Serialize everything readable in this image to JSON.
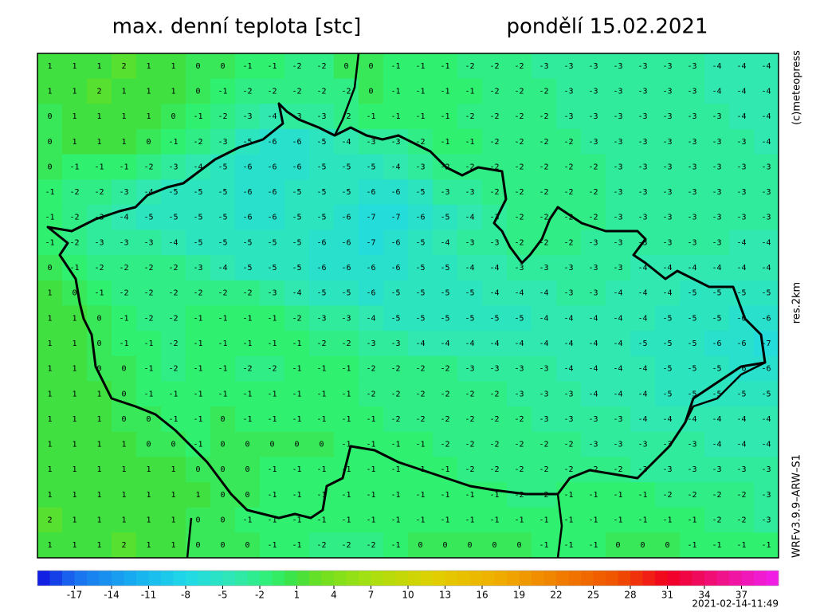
{
  "header": {
    "title": "max. denní teplota [stc]",
    "date": "pondělí 15.02.2021"
  },
  "side_labels": {
    "copyright": "(c)meteopress",
    "resolution": "res.2km",
    "model": "WRFv3.9.9–ARW–S1"
  },
  "footer": {
    "timestamp": "2021-02-14-11:49"
  },
  "map": {
    "grid": [
      [
        1,
        1,
        1,
        2,
        1,
        1,
        0,
        0,
        -1,
        -1,
        -2,
        -2,
        0,
        0,
        -1,
        -1,
        -1,
        -2,
        -2,
        -2,
        -3,
        -3,
        -3,
        -3,
        -3,
        -3,
        -3,
        -4,
        -4,
        -4
      ],
      [
        1,
        1,
        2,
        1,
        1,
        1,
        0,
        -1,
        -2,
        -2,
        -2,
        -2,
        -2,
        0,
        -1,
        -1,
        -1,
        -1,
        -2,
        -2,
        -2,
        -3,
        -3,
        -3,
        -3,
        -3,
        -3,
        -4,
        -4,
        -4
      ],
      [
        0,
        1,
        1,
        1,
        1,
        0,
        -1,
        -2,
        -3,
        -4,
        -3,
        -3,
        -2,
        -1,
        -1,
        -1,
        -1,
        -2,
        -2,
        -2,
        -2,
        -3,
        -3,
        -3,
        -3,
        -3,
        -3,
        -3,
        -4,
        -4
      ],
      [
        0,
        1,
        1,
        1,
        0,
        -1,
        -2,
        -3,
        -5,
        -6,
        -6,
        -5,
        -4,
        -3,
        -3,
        -2,
        -1,
        -1,
        -2,
        -2,
        -2,
        -2,
        -3,
        -3,
        -3,
        -3,
        -3,
        -3,
        -3,
        -4
      ],
      [
        0,
        -1,
        -1,
        -1,
        -2,
        -3,
        -4,
        -5,
        -6,
        -6,
        -6,
        -5,
        -5,
        -5,
        -4,
        -3,
        -2,
        -2,
        -2,
        -2,
        -2,
        -2,
        -2,
        -3,
        -3,
        -3,
        -3,
        -3,
        -3,
        -3
      ],
      [
        -1,
        -2,
        -2,
        -3,
        -4,
        -5,
        -5,
        -5,
        -6,
        -6,
        -5,
        -5,
        -5,
        -6,
        -6,
        -5,
        -3,
        -3,
        -2,
        -2,
        -2,
        -2,
        -2,
        -3,
        -3,
        -3,
        -3,
        -3,
        -3,
        -3
      ],
      [
        -1,
        -2,
        -3,
        -4,
        -5,
        -5,
        -5,
        -5,
        -6,
        -6,
        -5,
        -5,
        -6,
        -7,
        -7,
        -6,
        -5,
        -4,
        -3,
        -2,
        -2,
        -2,
        -2,
        -3,
        -3,
        -3,
        -3,
        -3,
        -3,
        -3
      ],
      [
        -1,
        -2,
        -3,
        -3,
        -3,
        -4,
        -5,
        -5,
        -5,
        -5,
        -5,
        -6,
        -6,
        -7,
        -6,
        -5,
        -4,
        -3,
        -3,
        -2,
        -2,
        -2,
        -3,
        -3,
        -3,
        -3,
        -3,
        -3,
        -4,
        -4
      ],
      [
        0,
        -1,
        -2,
        -2,
        -2,
        -2,
        -3,
        -4,
        -5,
        -5,
        -5,
        -6,
        -6,
        -6,
        -6,
        -5,
        -5,
        -4,
        -4,
        -3,
        -3,
        -3,
        -3,
        -3,
        -4,
        -4,
        -4,
        -4,
        -4,
        -4
      ],
      [
        1,
        0,
        -1,
        -2,
        -2,
        -2,
        -2,
        -2,
        -2,
        -3,
        -4,
        -5,
        -5,
        -6,
        -5,
        -5,
        -5,
        -5,
        -4,
        -4,
        -4,
        -3,
        -3,
        -4,
        -4,
        -4,
        -5,
        -5,
        -5,
        -5
      ],
      [
        1,
        1,
        0,
        -1,
        -2,
        -2,
        -1,
        -1,
        -1,
        -1,
        -2,
        -3,
        -3,
        -4,
        -5,
        -5,
        -5,
        -5,
        -5,
        -5,
        -4,
        -4,
        -4,
        -4,
        -4,
        -5,
        -5,
        -5,
        -6,
        -6
      ],
      [
        1,
        1,
        0,
        -1,
        -1,
        -2,
        -1,
        -1,
        -1,
        -1,
        -1,
        -2,
        -2,
        -3,
        -3,
        -4,
        -4,
        -4,
        -4,
        -4,
        -4,
        -4,
        -4,
        -4,
        -5,
        -5,
        -5,
        -6,
        -6,
        -7
      ],
      [
        1,
        1,
        0,
        0,
        -1,
        -2,
        -1,
        -1,
        -2,
        -2,
        -1,
        -1,
        -1,
        -2,
        -2,
        -2,
        -2,
        -3,
        -3,
        -3,
        -3,
        -4,
        -4,
        -4,
        -4,
        -5,
        -5,
        -5,
        -6,
        -6
      ],
      [
        1,
        1,
        1,
        0,
        -1,
        -1,
        -1,
        -1,
        -1,
        -1,
        -1,
        -1,
        -1,
        -2,
        -2,
        -2,
        -2,
        -2,
        -2,
        -3,
        -3,
        -3,
        -4,
        -4,
        -4,
        -5,
        -5,
        -5,
        -5,
        -5
      ],
      [
        1,
        1,
        1,
        0,
        0,
        -1,
        -1,
        0,
        -1,
        -1,
        -1,
        -1,
        -1,
        -1,
        -2,
        -2,
        -2,
        -2,
        -2,
        -2,
        -3,
        -3,
        -3,
        -3,
        -4,
        -4,
        -4,
        -4,
        -4,
        -4
      ],
      [
        1,
        1,
        1,
        1,
        0,
        0,
        -1,
        0,
        0,
        0,
        0,
        0,
        -1,
        -1,
        -1,
        -1,
        -2,
        -2,
        -2,
        -2,
        -2,
        -2,
        -3,
        -3,
        -3,
        -3,
        -3,
        -4,
        -4,
        -4
      ],
      [
        1,
        1,
        1,
        1,
        1,
        1,
        0,
        0,
        0,
        -1,
        -1,
        -1,
        -1,
        -1,
        -1,
        -1,
        -1,
        -2,
        -2,
        -2,
        -2,
        -2,
        -2,
        -2,
        -3,
        -3,
        -3,
        -3,
        -3,
        -3
      ],
      [
        1,
        1,
        1,
        1,
        1,
        1,
        1,
        0,
        0,
        -1,
        -1,
        -1,
        -1,
        -1,
        -1,
        -1,
        -1,
        -1,
        -1,
        -2,
        -2,
        -1,
        -1,
        -1,
        -1,
        -2,
        -2,
        -2,
        -2,
        -3
      ],
      [
        2,
        1,
        1,
        1,
        1,
        1,
        0,
        0,
        -1,
        -1,
        -1,
        -1,
        -1,
        -1,
        -1,
        -1,
        -1,
        -1,
        -1,
        -1,
        -1,
        -1,
        -1,
        -1,
        -1,
        -1,
        -1,
        -2,
        -2,
        -3
      ],
      [
        1,
        1,
        1,
        2,
        1,
        1,
        0,
        0,
        0,
        -1,
        -1,
        -2,
        -2,
        -2,
        -1,
        0,
        0,
        0,
        0,
        0,
        -1,
        -1,
        -1,
        0,
        0,
        0,
        -1,
        -1,
        -1,
        -1
      ]
    ]
  },
  "colorbar": {
    "lim": [
      -20,
      40
    ],
    "ticks": [
      -17,
      -14,
      -11,
      -8,
      -5,
      -2,
      1,
      4,
      7,
      10,
      13,
      16,
      19,
      22,
      25,
      28,
      31,
      34,
      37
    ],
    "stops": [
      [
        -20,
        "#1010e0"
      ],
      [
        -17,
        "#1a70f0"
      ],
      [
        -12,
        "#18b0f0"
      ],
      [
        -8,
        "#20d8e8"
      ],
      [
        -4,
        "#30e8b0"
      ],
      [
        -1,
        "#30f070"
      ],
      [
        1,
        "#40e040"
      ],
      [
        3,
        "#70e020"
      ],
      [
        7,
        "#a8e010"
      ],
      [
        12,
        "#e0d000"
      ],
      [
        17,
        "#f0b000"
      ],
      [
        22,
        "#f08000"
      ],
      [
        27,
        "#f05000"
      ],
      [
        31,
        "#f00020"
      ],
      [
        35,
        "#f01080"
      ],
      [
        40,
        "#f020f0"
      ]
    ]
  }
}
